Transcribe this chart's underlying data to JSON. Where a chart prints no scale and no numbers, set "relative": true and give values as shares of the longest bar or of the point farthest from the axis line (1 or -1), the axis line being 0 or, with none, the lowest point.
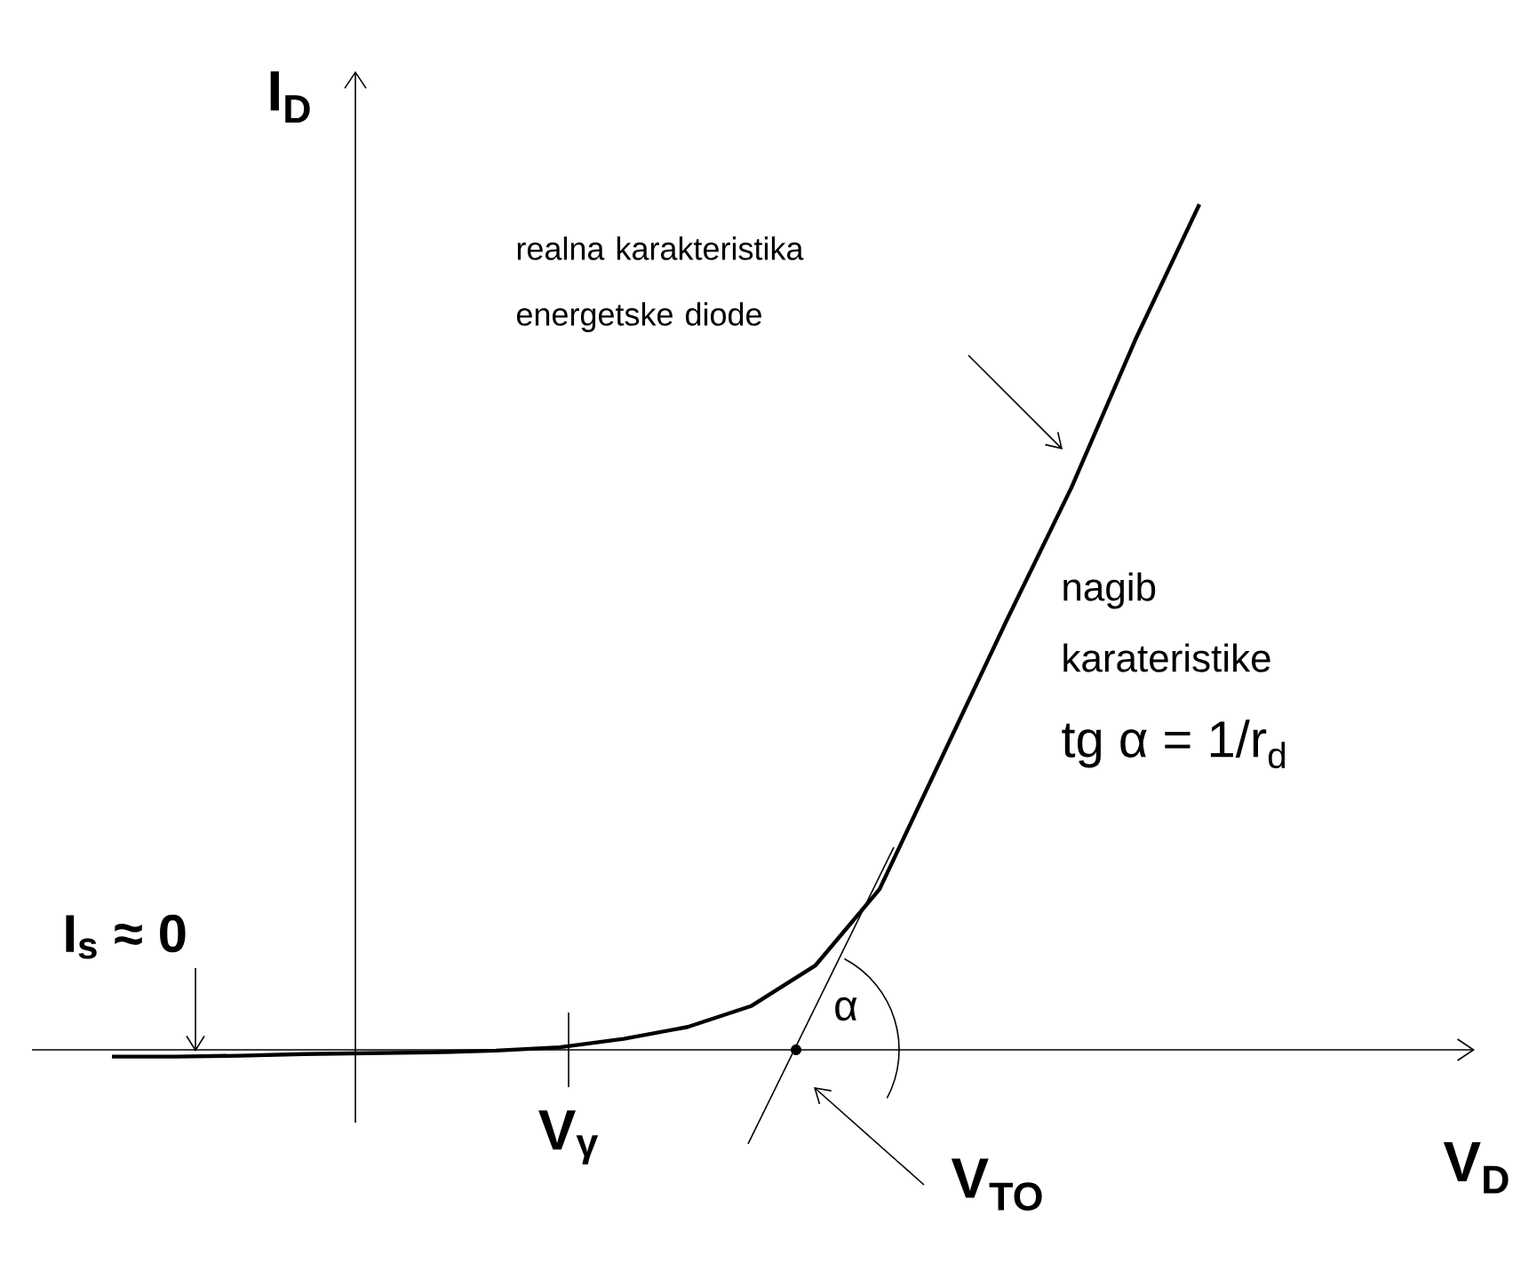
{
  "chart_data": {
    "type": "line",
    "relative": true,
    "xlabel": "V$_{D}$",
    "ylabel": "I$_{D}$",
    "categories": [
      null,
      null,
      null,
      null,
      null,
      null,
      null,
      null,
      null,
      null,
      null,
      null,
      null,
      null,
      null,
      null,
      null,
      null
    ],
    "series": [
      {
        "color": "#000000",
        "values": [
          -0.008,
          -0.008,
          -0.007,
          -0.005,
          -0.004,
          -0.003,
          -0.001,
          0.003,
          0.013,
          0.027,
          0.052,
          0.1,
          0.19,
          0.35,
          0.51,
          0.665,
          0.84,
          1
        ]
      }
    ],
    "annotations": [
      "realna karakteristika energetske diode",
      "nagib karateristike",
      "tg α = 1/r$_{d}$",
      "I$_{s}$ ≈ 0",
      "α",
      "V$_{TO}$",
      "V$_{γ}$"
    ]
  }
}
